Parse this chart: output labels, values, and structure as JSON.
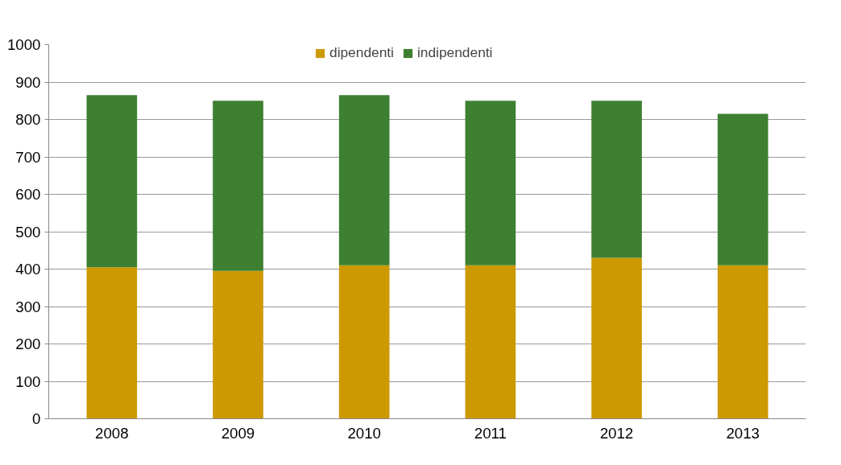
{
  "chart_data": {
    "type": "bar",
    "stacked": true,
    "categories": [
      "2008",
      "2009",
      "2010",
      "2011",
      "2012",
      "2013"
    ],
    "series": [
      {
        "name": "dipendenti",
        "color": "#cc9900",
        "values": [
          405,
          395,
          410,
          410,
          430,
          410
        ]
      },
      {
        "name": "indipendenti",
        "color": "#3d8031",
        "values": [
          460,
          455,
          455,
          440,
          420,
          405
        ]
      }
    ],
    "ylim": [
      0,
      1000
    ],
    "yticks": [
      0,
      100,
      200,
      300,
      400,
      500,
      600,
      700,
      800,
      900,
      1000
    ],
    "grid": "y",
    "legend": "top"
  }
}
